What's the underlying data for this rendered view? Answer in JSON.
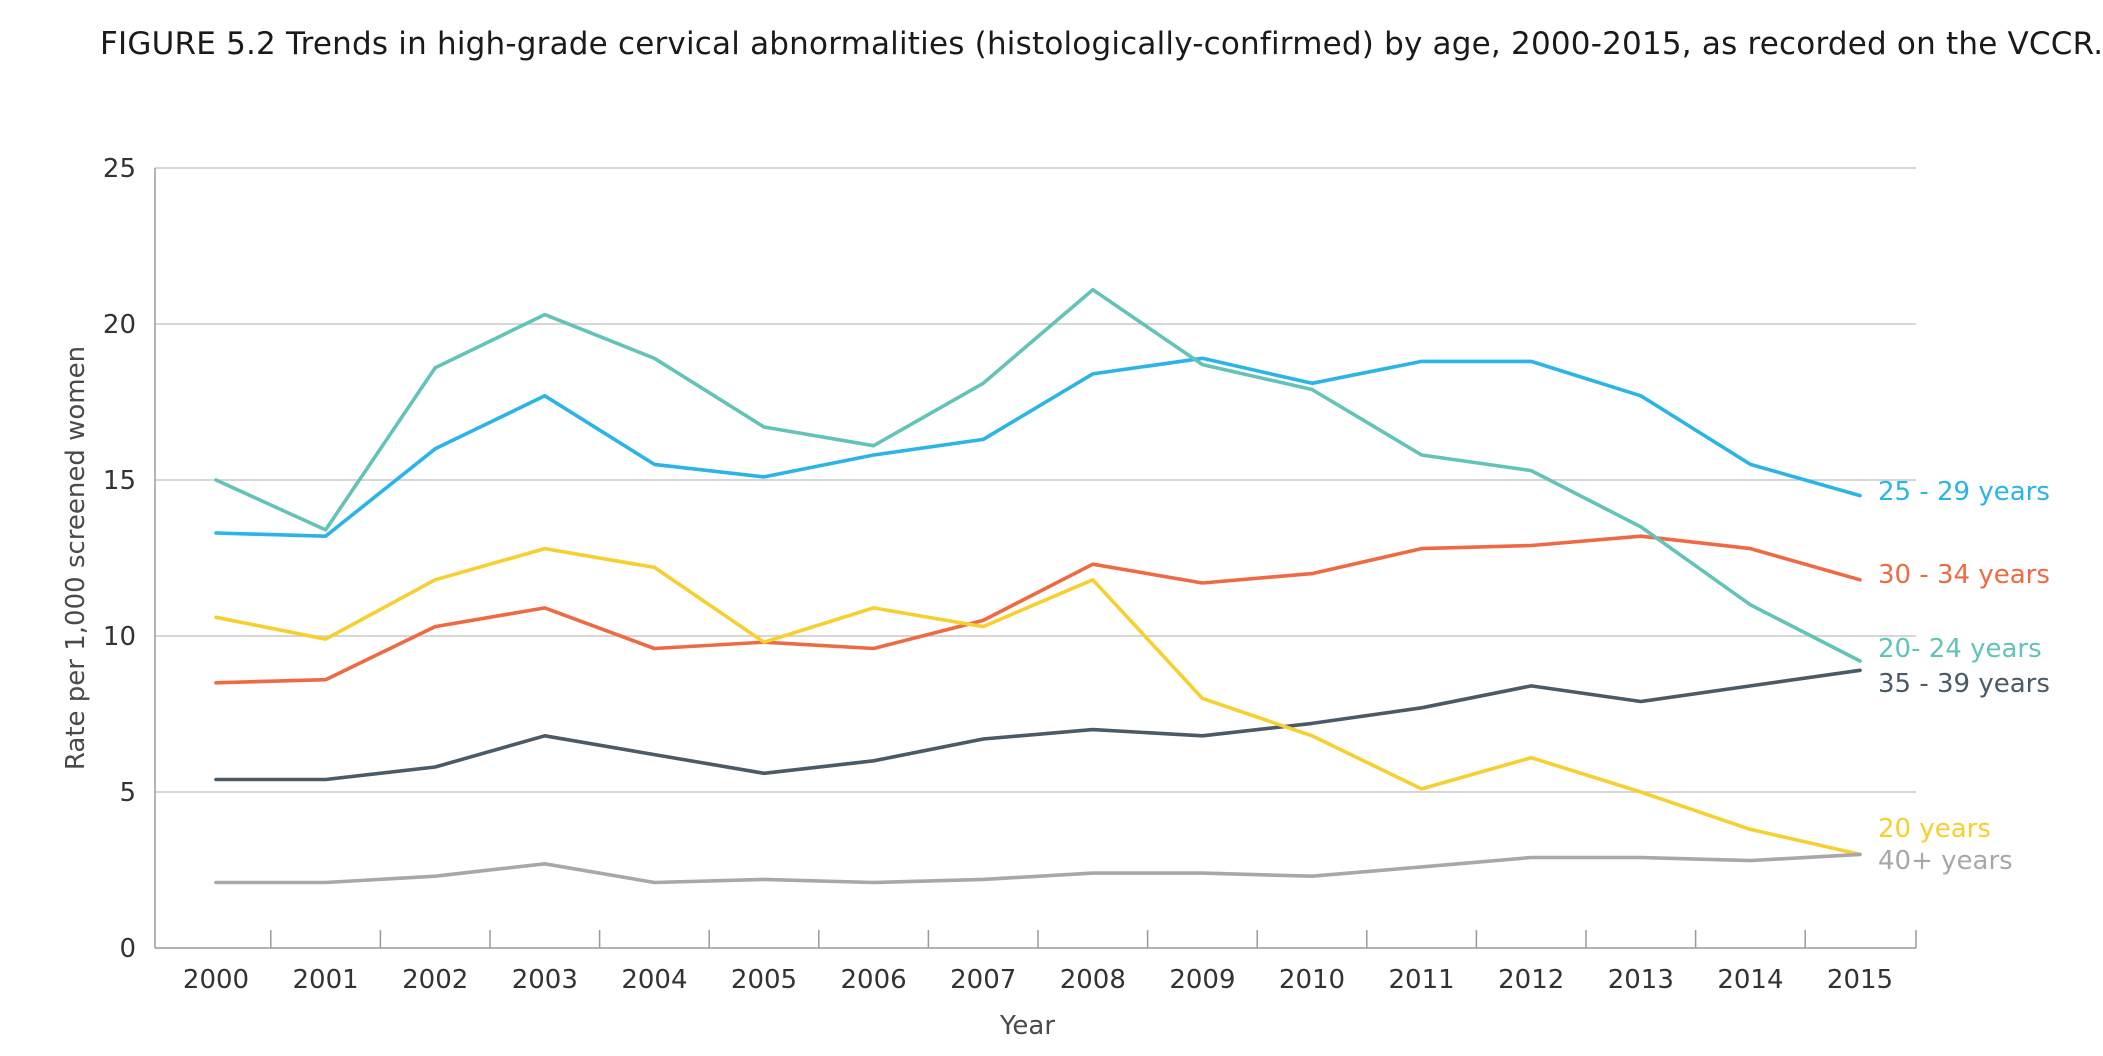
{
  "chart_data": {
    "type": "line",
    "title": "FIGURE 5.2 Trends in high-grade cervical abnormalities (histologically-confirmed) by age, 2000-2015, as recorded on the VCCR.",
    "xlabel": "Year",
    "ylabel": "Rate per 1,000 screened women",
    "ylim": [
      0,
      25
    ],
    "yticks": [
      "0",
      "5",
      "10",
      "15",
      "20",
      "25"
    ],
    "x": [
      "2000",
      "2001",
      "2002",
      "2003",
      "2004",
      "2005",
      "2006",
      "2007",
      "2008",
      "2009",
      "2010",
      "2011",
      "2012",
      "2013",
      "2014",
      "2015"
    ],
    "grid": true,
    "legend": "inline labels at right end of each line",
    "series": [
      {
        "name": "25 - 29 years",
        "color": "#2bb4e8",
        "values": [
          13.3,
          13.2,
          16.0,
          17.7,
          15.5,
          15.1,
          15.8,
          16.3,
          18.4,
          18.9,
          18.1,
          18.8,
          18.8,
          17.7,
          15.5,
          14.5
        ]
      },
      {
        "name": "30 - 34 years",
        "color": "#ef6a42",
        "values": [
          8.5,
          8.6,
          10.3,
          10.9,
          9.6,
          9.8,
          9.6,
          10.5,
          12.3,
          11.7,
          12.0,
          12.8,
          12.9,
          13.2,
          12.8,
          11.8
        ]
      },
      {
        "name": "20- 24 years",
        "color": "#63c3b8",
        "values": [
          15.0,
          13.4,
          18.6,
          20.3,
          18.9,
          16.7,
          16.1,
          18.1,
          21.1,
          18.7,
          17.9,
          15.8,
          15.3,
          13.5,
          11.0,
          9.2
        ]
      },
      {
        "name": "35 - 39 years",
        "color": "#4a5a66",
        "values": [
          5.4,
          5.4,
          5.8,
          6.8,
          6.2,
          5.6,
          6.0,
          6.7,
          7.0,
          6.8,
          7.2,
          7.7,
          8.4,
          7.9,
          8.4,
          8.9
        ]
      },
      {
        "name": "20 years",
        "color": "#f7cf2f",
        "values": [
          10.6,
          9.9,
          11.8,
          12.8,
          12.2,
          9.8,
          10.9,
          10.3,
          11.8,
          8.0,
          6.8,
          5.1,
          6.1,
          5.0,
          3.8,
          3.0
        ]
      },
      {
        "name": "40+ years",
        "color": "#a8a8ab",
        "values": [
          2.1,
          2.1,
          2.3,
          2.7,
          2.1,
          2.2,
          2.1,
          2.2,
          2.4,
          2.4,
          2.3,
          2.6,
          2.9,
          2.9,
          2.8,
          3.0
        ]
      }
    ]
  }
}
